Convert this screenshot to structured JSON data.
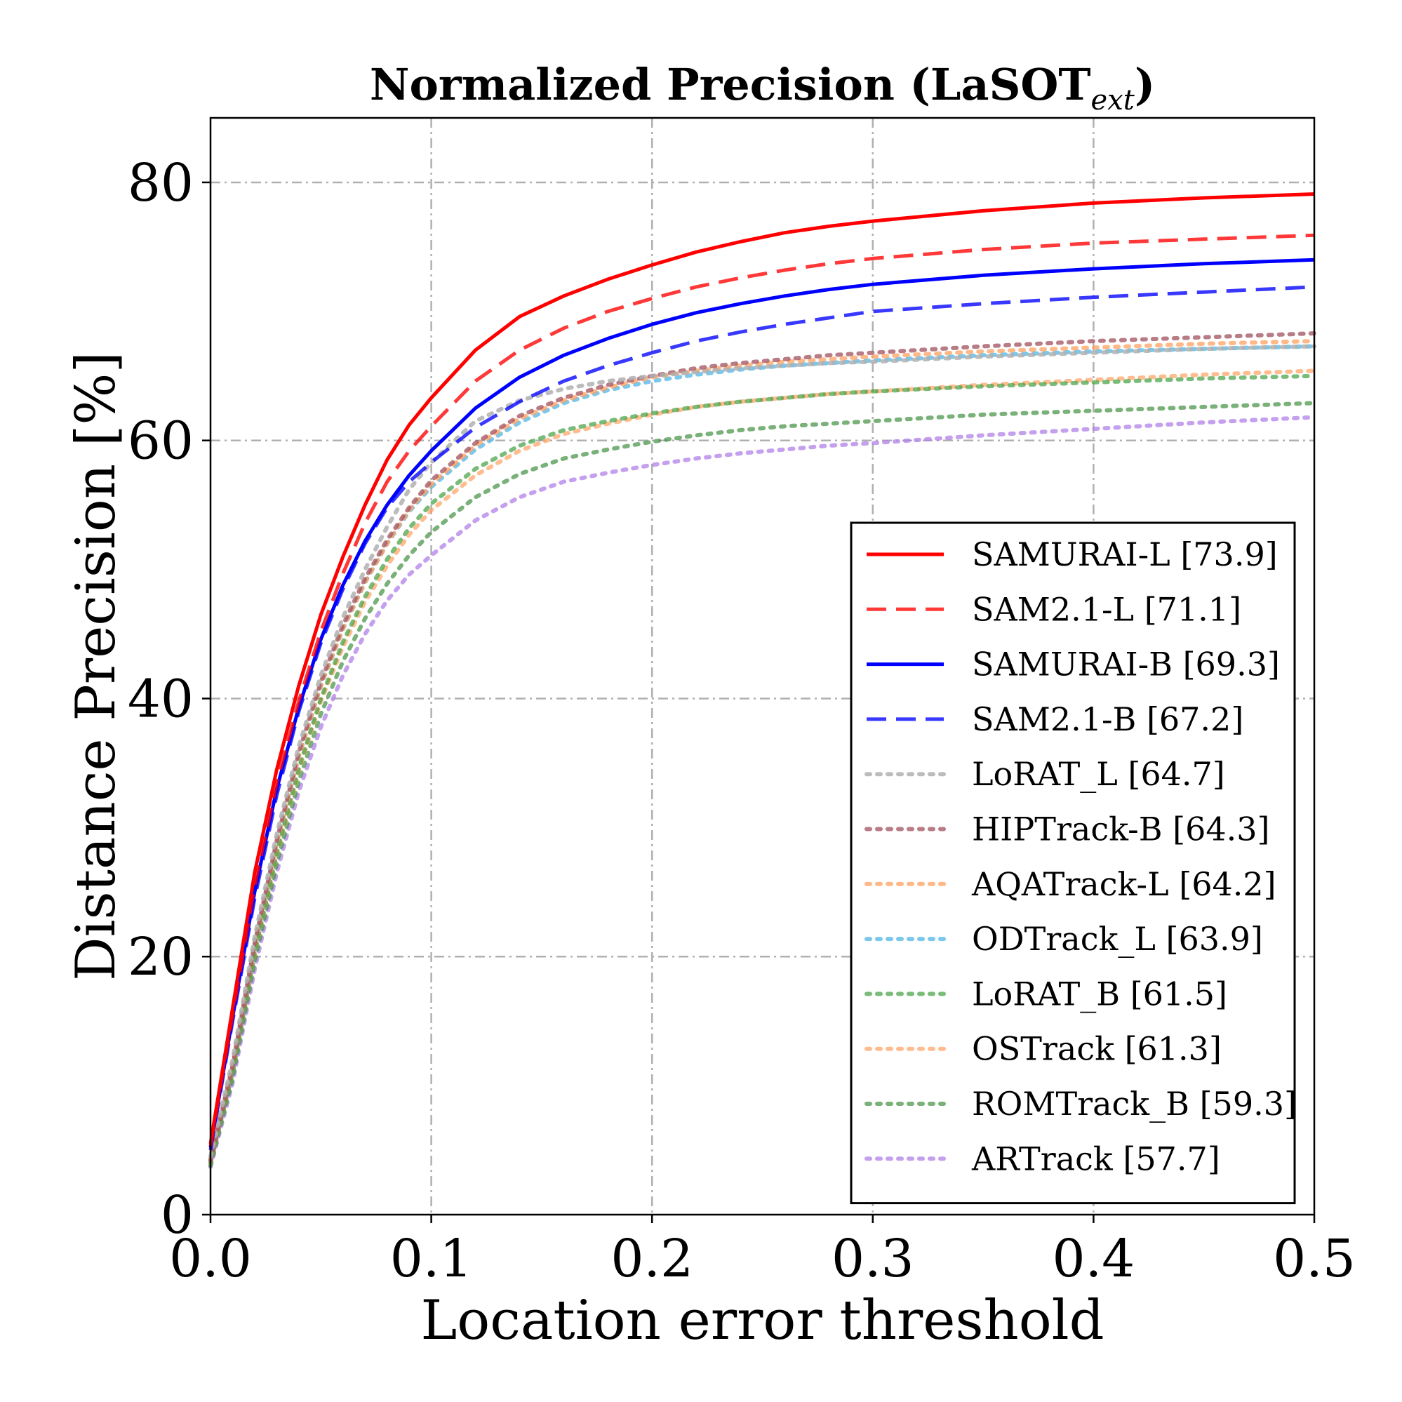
{
  "chart_data": {
    "type": "line",
    "title": "Normalized Precision (LaSOT",
    "title_subscript": "ext",
    "title_close": ")",
    "xlabel": "Location error threshold",
    "ylabel": "Distance Precision [%]",
    "xlim": [
      0.0,
      0.5
    ],
    "ylim": [
      0,
      85
    ],
    "xticks": [
      "0.0",
      "0.1",
      "0.2",
      "0.3",
      "0.4",
      "0.5"
    ],
    "yticks": [
      "0",
      "20",
      "40",
      "60",
      "80"
    ],
    "grid": true,
    "legend_position": "lower-right",
    "x": [
      0.0,
      0.01,
      0.02,
      0.03,
      0.04,
      0.05,
      0.06,
      0.07,
      0.08,
      0.09,
      0.1,
      0.12,
      0.14,
      0.16,
      0.18,
      0.2,
      0.22,
      0.24,
      0.26,
      0.28,
      0.3,
      0.35,
      0.4,
      0.45,
      0.5
    ],
    "series": [
      {
        "name": "SAMURAI-L [73.9]",
        "color": "#ff0000",
        "style": "solid",
        "opacity": 1.0,
        "values": [
          5.5,
          16,
          26.5,
          34.5,
          41,
          46.5,
          51,
          55,
          58.5,
          61.2,
          63.3,
          67,
          69.6,
          71.2,
          72.5,
          73.6,
          74.6,
          75.4,
          76.1,
          76.6,
          77.0,
          77.8,
          78.4,
          78.8,
          79.1
        ]
      },
      {
        "name": "SAM2.1-L [71.1]",
        "color": "#ff0000",
        "style": "dashed",
        "opacity": 0.78,
        "values": [
          5.3,
          15.5,
          25.5,
          33.5,
          39.8,
          45.2,
          49.7,
          53.6,
          56.8,
          59.2,
          61.1,
          64.6,
          67.0,
          68.7,
          70.0,
          71.0,
          71.9,
          72.6,
          73.2,
          73.7,
          74.1,
          74.8,
          75.3,
          75.6,
          75.9
        ]
      },
      {
        "name": "SAMURAI-B [69.3]",
        "color": "#0000ff",
        "style": "solid",
        "opacity": 1.0,
        "values": [
          5.2,
          15.3,
          25.0,
          33.0,
          39.3,
          44.6,
          48.8,
          52.2,
          55.0,
          57.3,
          59.2,
          62.5,
          64.9,
          66.6,
          67.9,
          69.0,
          69.9,
          70.6,
          71.2,
          71.7,
          72.1,
          72.8,
          73.3,
          73.7,
          74.0
        ]
      },
      {
        "name": "SAM2.1-B [67.2]",
        "color": "#0000ff",
        "style": "dashed",
        "opacity": 0.78,
        "values": [
          5.0,
          15.0,
          24.5,
          32.5,
          39.0,
          44.3,
          48.5,
          52.0,
          54.8,
          56.8,
          58.3,
          61.0,
          63.0,
          64.6,
          65.8,
          66.8,
          67.7,
          68.4,
          69.0,
          69.5,
          70.0,
          70.6,
          71.1,
          71.5,
          71.9
        ]
      },
      {
        "name": "LoRAT_L [64.7]",
        "color": "#b0b0b0",
        "style": "dotted",
        "opacity": 0.85,
        "values": [
          4.5,
          12.0,
          21.5,
          29.5,
          36.3,
          41.8,
          46.3,
          50.0,
          53.3,
          56.2,
          58.3,
          61.5,
          63.1,
          64.0,
          64.6,
          65.0,
          65.3,
          65.6,
          65.8,
          66.0,
          66.1,
          66.5,
          66.8,
          67.1,
          67.3
        ]
      },
      {
        "name": "HIPTrack-B [64.3]",
        "color": "#a0505e",
        "style": "dotted",
        "opacity": 0.75,
        "values": [
          4.2,
          11.5,
          21.0,
          29.0,
          35.8,
          41.3,
          45.7,
          49.3,
          52.3,
          54.8,
          56.9,
          59.8,
          61.9,
          63.3,
          64.3,
          65.0,
          65.6,
          66.0,
          66.3,
          66.6,
          66.8,
          67.3,
          67.7,
          68.0,
          68.3
        ]
      },
      {
        "name": "AQATrack-L [64.2]",
        "color": "#ffa060",
        "style": "dotted",
        "opacity": 0.75,
        "values": [
          4.3,
          11.6,
          21.0,
          28.8,
          35.5,
          41.0,
          45.4,
          49.0,
          52.0,
          54.6,
          56.6,
          59.6,
          61.7,
          63.1,
          64.1,
          64.9,
          65.4,
          65.8,
          66.1,
          66.3,
          66.5,
          66.9,
          67.2,
          67.5,
          67.7
        ]
      },
      {
        "name": "ODTrack_L [63.9]",
        "color": "#50b4e6",
        "style": "dotted",
        "opacity": 0.75,
        "values": [
          4.3,
          11.6,
          21.0,
          28.8,
          35.5,
          41.0,
          45.4,
          49.0,
          52.0,
          54.5,
          56.4,
          59.3,
          61.4,
          62.9,
          63.9,
          64.6,
          65.1,
          65.5,
          65.8,
          66.0,
          66.2,
          66.6,
          66.9,
          67.1,
          67.3
        ]
      },
      {
        "name": "LoRAT_B [61.5]",
        "color": "#40a040",
        "style": "dotted",
        "opacity": 0.7,
        "values": [
          4.0,
          11.0,
          20.3,
          28.0,
          34.6,
          40.0,
          44.4,
          47.9,
          50.8,
          53.2,
          55.1,
          57.8,
          59.6,
          60.8,
          61.5,
          62.1,
          62.6,
          63.0,
          63.3,
          63.6,
          63.8,
          64.2,
          64.5,
          64.8,
          65.0
        ]
      },
      {
        "name": "OSTrack [61.3]",
        "color": "#ffa060",
        "style": "dotted",
        "opacity": 0.7,
        "values": [
          4.0,
          11.0,
          20.2,
          27.9,
          34.4,
          39.8,
          44.0,
          47.5,
          50.3,
          52.7,
          54.6,
          57.3,
          59.2,
          60.5,
          61.3,
          62.0,
          62.6,
          63.0,
          63.3,
          63.6,
          63.8,
          64.3,
          64.7,
          65.1,
          65.4
        ]
      },
      {
        "name": "ROMTrack_B [59.3]",
        "color": "#409040",
        "style": "dotted",
        "opacity": 0.7,
        "values": [
          3.8,
          10.6,
          19.6,
          27.2,
          33.6,
          38.8,
          42.9,
          46.2,
          48.9,
          51.1,
          52.9,
          55.6,
          57.4,
          58.6,
          59.3,
          59.9,
          60.4,
          60.8,
          61.1,
          61.3,
          61.5,
          62.0,
          62.3,
          62.6,
          62.9
        ]
      },
      {
        "name": "ARTrack [57.7]",
        "color": "#b080e8",
        "style": "dotted",
        "opacity": 0.75,
        "values": [
          3.7,
          10.2,
          19.0,
          26.5,
          32.8,
          37.8,
          41.8,
          45.0,
          47.6,
          49.6,
          51.1,
          53.8,
          55.6,
          56.8,
          57.5,
          58.1,
          58.6,
          59.0,
          59.3,
          59.6,
          59.8,
          60.4,
          60.9,
          61.4,
          61.8
        ]
      }
    ]
  }
}
